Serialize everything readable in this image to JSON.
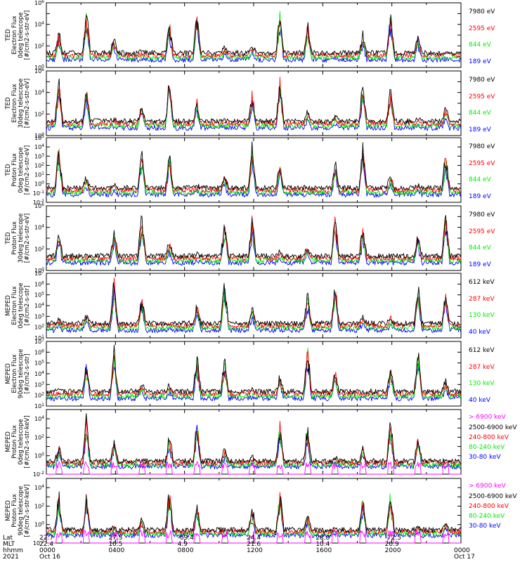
{
  "colors": {
    "blue": "#0000ff",
    "red": "#ff0000",
    "green": "#00ee00",
    "black": "#000000",
    "magenta": "#ff00ff"
  },
  "chart_data": [
    {
      "type": "line",
      "ylabel": [
        "TED",
        "Electron Flux",
        "0deg telescope",
        "[#/cm2-s-str-eV]"
      ],
      "yscale": "log",
      "ylim": [
        1,
        1000000
      ],
      "ytick_labels": [
        "10^0",
        "10^2",
        "10^4",
        "10^6"
      ],
      "series": [
        {
          "name": "7980 eV",
          "color": "#000000"
        },
        {
          "name": "2595 eV",
          "color": "#ff0000"
        },
        {
          "name": "844 eV",
          "color": "#00ee00"
        },
        {
          "name": "189 eV",
          "color": "#0000ff"
        }
      ]
    },
    {
      "type": "line",
      "ylabel": [
        "TED",
        "Electron Flux",
        "30deg telescope",
        "[#/cm2-s-str-eV]"
      ],
      "yscale": "log",
      "ylim": [
        1,
        1000000
      ],
      "ytick_labels": [
        "10^0",
        "10^2",
        "10^4",
        "10^6"
      ],
      "series": [
        {
          "name": "7980 eV",
          "color": "#000000"
        },
        {
          "name": "2595 eV",
          "color": "#ff0000"
        },
        {
          "name": "844 eV",
          "color": "#00ee00"
        },
        {
          "name": "189 eV",
          "color": "#0000ff"
        }
      ]
    },
    {
      "type": "line",
      "ylabel": [
        "TED",
        "Proton Flux",
        "0deg telescope",
        "[#/cm2-s-str-eV]"
      ],
      "yscale": "log",
      "ylim": [
        0.01,
        100000
      ],
      "ytick_labels": [
        "10^-2",
        "10^-1",
        "10^0",
        "10^1",
        "10^2",
        "10^3",
        "10^4",
        "10^5"
      ],
      "series": [
        {
          "name": "7980 eV",
          "color": "#000000"
        },
        {
          "name": "2595 eV",
          "color": "#ff0000"
        },
        {
          "name": "844 eV",
          "color": "#00ee00"
        },
        {
          "name": "189 eV",
          "color": "#0000ff"
        }
      ]
    },
    {
      "type": "line",
      "ylabel": [
        "TED",
        "Proton Flux",
        "30deg telescope",
        "[#/cm2-s-str-eV]"
      ],
      "yscale": "log",
      "ylim": [
        1,
        1000000
      ],
      "ytick_labels": [
        "10^0",
        "10^2",
        "10^4",
        "10^6"
      ],
      "series": [
        {
          "name": "7980 eV",
          "color": "#000000"
        },
        {
          "name": "2595 eV",
          "color": "#ff0000"
        },
        {
          "name": "844 eV",
          "color": "#00ee00"
        },
        {
          "name": "189 eV",
          "color": "#0000ff"
        }
      ]
    },
    {
      "type": "line",
      "ylabel": [
        "MEPED",
        "Electron Flux",
        "0deg telescope",
        "[#/cm2-s-str]"
      ],
      "yscale": "log",
      "ylim": [
        10,
        10000000
      ],
      "ytick_labels": [
        "10^1",
        "10^2",
        "10^3",
        "10^4",
        "10^5",
        "10^6",
        "10^7"
      ],
      "series": [
        {
          "name": "612 keV",
          "color": "#000000"
        },
        {
          "name": "287 keV",
          "color": "#ff0000"
        },
        {
          "name": "130 keV",
          "color": "#00ee00"
        },
        {
          "name": "40 keV",
          "color": "#0000ff"
        }
      ]
    },
    {
      "type": "line",
      "ylabel": [
        "MEPED",
        "Electron Flux",
        "90deg telescope",
        "[#/cm2-s-str]"
      ],
      "yscale": "log",
      "ylim": [
        10,
        10000000
      ],
      "ytick_labels": [
        "10^1",
        "10^2",
        "10^3",
        "10^4",
        "10^5",
        "10^6",
        "10^7"
      ],
      "series": [
        {
          "name": "612 keV",
          "color": "#000000"
        },
        {
          "name": "287 keV",
          "color": "#ff0000"
        },
        {
          "name": "130 keV",
          "color": "#00ee00"
        },
        {
          "name": "40 keV",
          "color": "#0000ff"
        }
      ]
    },
    {
      "type": "line",
      "ylabel": [
        "MEPED",
        "Proton Flux",
        "0deg telescope",
        "[#/cm2-s-str-keV]"
      ],
      "yscale": "log",
      "ylim": [
        0.01,
        100000
      ],
      "ytick_labels": [
        "10^-2",
        "10^0",
        "10^2",
        "10^4"
      ],
      "series": [
        {
          "name": "> 6900 keV",
          "color": "#ff00ff"
        },
        {
          "name": "2500-6900 keV",
          "color": "#000000"
        },
        {
          "name": "240-800 keV",
          "color": "#ff0000"
        },
        {
          "name": "80-240 keV",
          "color": "#00ee00"
        },
        {
          "name": "30-80 keV",
          "color": "#0000ff"
        }
      ]
    },
    {
      "type": "line",
      "ylabel": [
        "MEPED",
        "Proton Flux",
        "90deg telescope",
        "[#/cm2-s-str-keV]"
      ],
      "yscale": "log",
      "ylim": [
        0.01,
        100000
      ],
      "ytick_labels": [
        "10^-2",
        "10^0",
        "10^2",
        "10^4"
      ],
      "series": [
        {
          "name": "> 6900 keV",
          "color": "#ff00ff"
        },
        {
          "name": "2500-6900 keV",
          "color": "#000000"
        },
        {
          "name": "240-800 keV",
          "color": "#ff0000"
        },
        {
          "name": "80-240 keV",
          "color": "#00ee00"
        },
        {
          "name": "30-80 keV",
          "color": "#0000ff"
        }
      ]
    }
  ],
  "footer": {
    "row_labels": [
      "Lat",
      "MLT",
      "hhmm",
      "2021"
    ],
    "columns": [
      {
        "lat": "22.7",
        "mlt": "22.4",
        "hhmm": "0000",
        "date": "Oct 16"
      },
      {
        "lat": "27.3",
        "mlt": "10.5",
        "hhmm": "0400",
        "date": ""
      },
      {
        "lat": "-69.4",
        "mlt": "4.9",
        "hhmm": "0800",
        "date": ""
      },
      {
        "lat": "24.4",
        "mlt": "21.6",
        "hhmm": "1200",
        "date": ""
      },
      {
        "lat": "28.8",
        "mlt": "10.4",
        "hhmm": "1600",
        "date": ""
      },
      {
        "lat": "-72.5",
        "mlt": "20.9",
        "hhmm": "2000",
        "date": ""
      },
      {
        "lat": "",
        "mlt": "",
        "hhmm": "0000",
        "date": "Oct 17"
      }
    ]
  }
}
